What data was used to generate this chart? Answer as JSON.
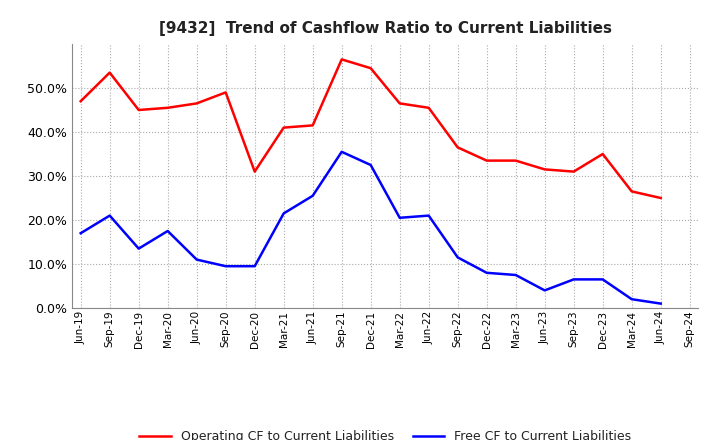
{
  "title": "[9432]  Trend of Cashflow Ratio to Current Liabilities",
  "x_labels": [
    "Jun-19",
    "Sep-19",
    "Dec-19",
    "Mar-20",
    "Jun-20",
    "Sep-20",
    "Dec-20",
    "Mar-21",
    "Jun-21",
    "Sep-21",
    "Dec-21",
    "Mar-22",
    "Jun-22",
    "Sep-22",
    "Dec-22",
    "Mar-23",
    "Jun-23",
    "Sep-23",
    "Dec-23",
    "Mar-24",
    "Jun-24",
    "Sep-24"
  ],
  "operating_cf": [
    0.47,
    0.535,
    0.45,
    0.455,
    0.465,
    0.49,
    0.31,
    0.41,
    0.415,
    0.565,
    0.545,
    0.465,
    0.455,
    0.365,
    0.335,
    0.335,
    0.315,
    0.31,
    0.35,
    0.265,
    0.25,
    null
  ],
  "free_cf": [
    0.17,
    0.21,
    0.135,
    0.175,
    0.11,
    0.095,
    0.095,
    0.215,
    0.255,
    0.355,
    0.325,
    0.205,
    0.21,
    0.115,
    0.08,
    0.075,
    0.04,
    0.065,
    0.065,
    0.02,
    0.01,
    null
  ],
  "operating_color": "#FF0000",
  "free_color": "#0000FF",
  "ylim": [
    0.0,
    0.6
  ],
  "yticks": [
    0.0,
    0.1,
    0.2,
    0.3,
    0.4,
    0.5
  ],
  "legend_operating": "Operating CF to Current Liabilities",
  "legend_free": "Free CF to Current Liabilities",
  "background_color": "#FFFFFF",
  "grid_color": "#AAAAAA"
}
